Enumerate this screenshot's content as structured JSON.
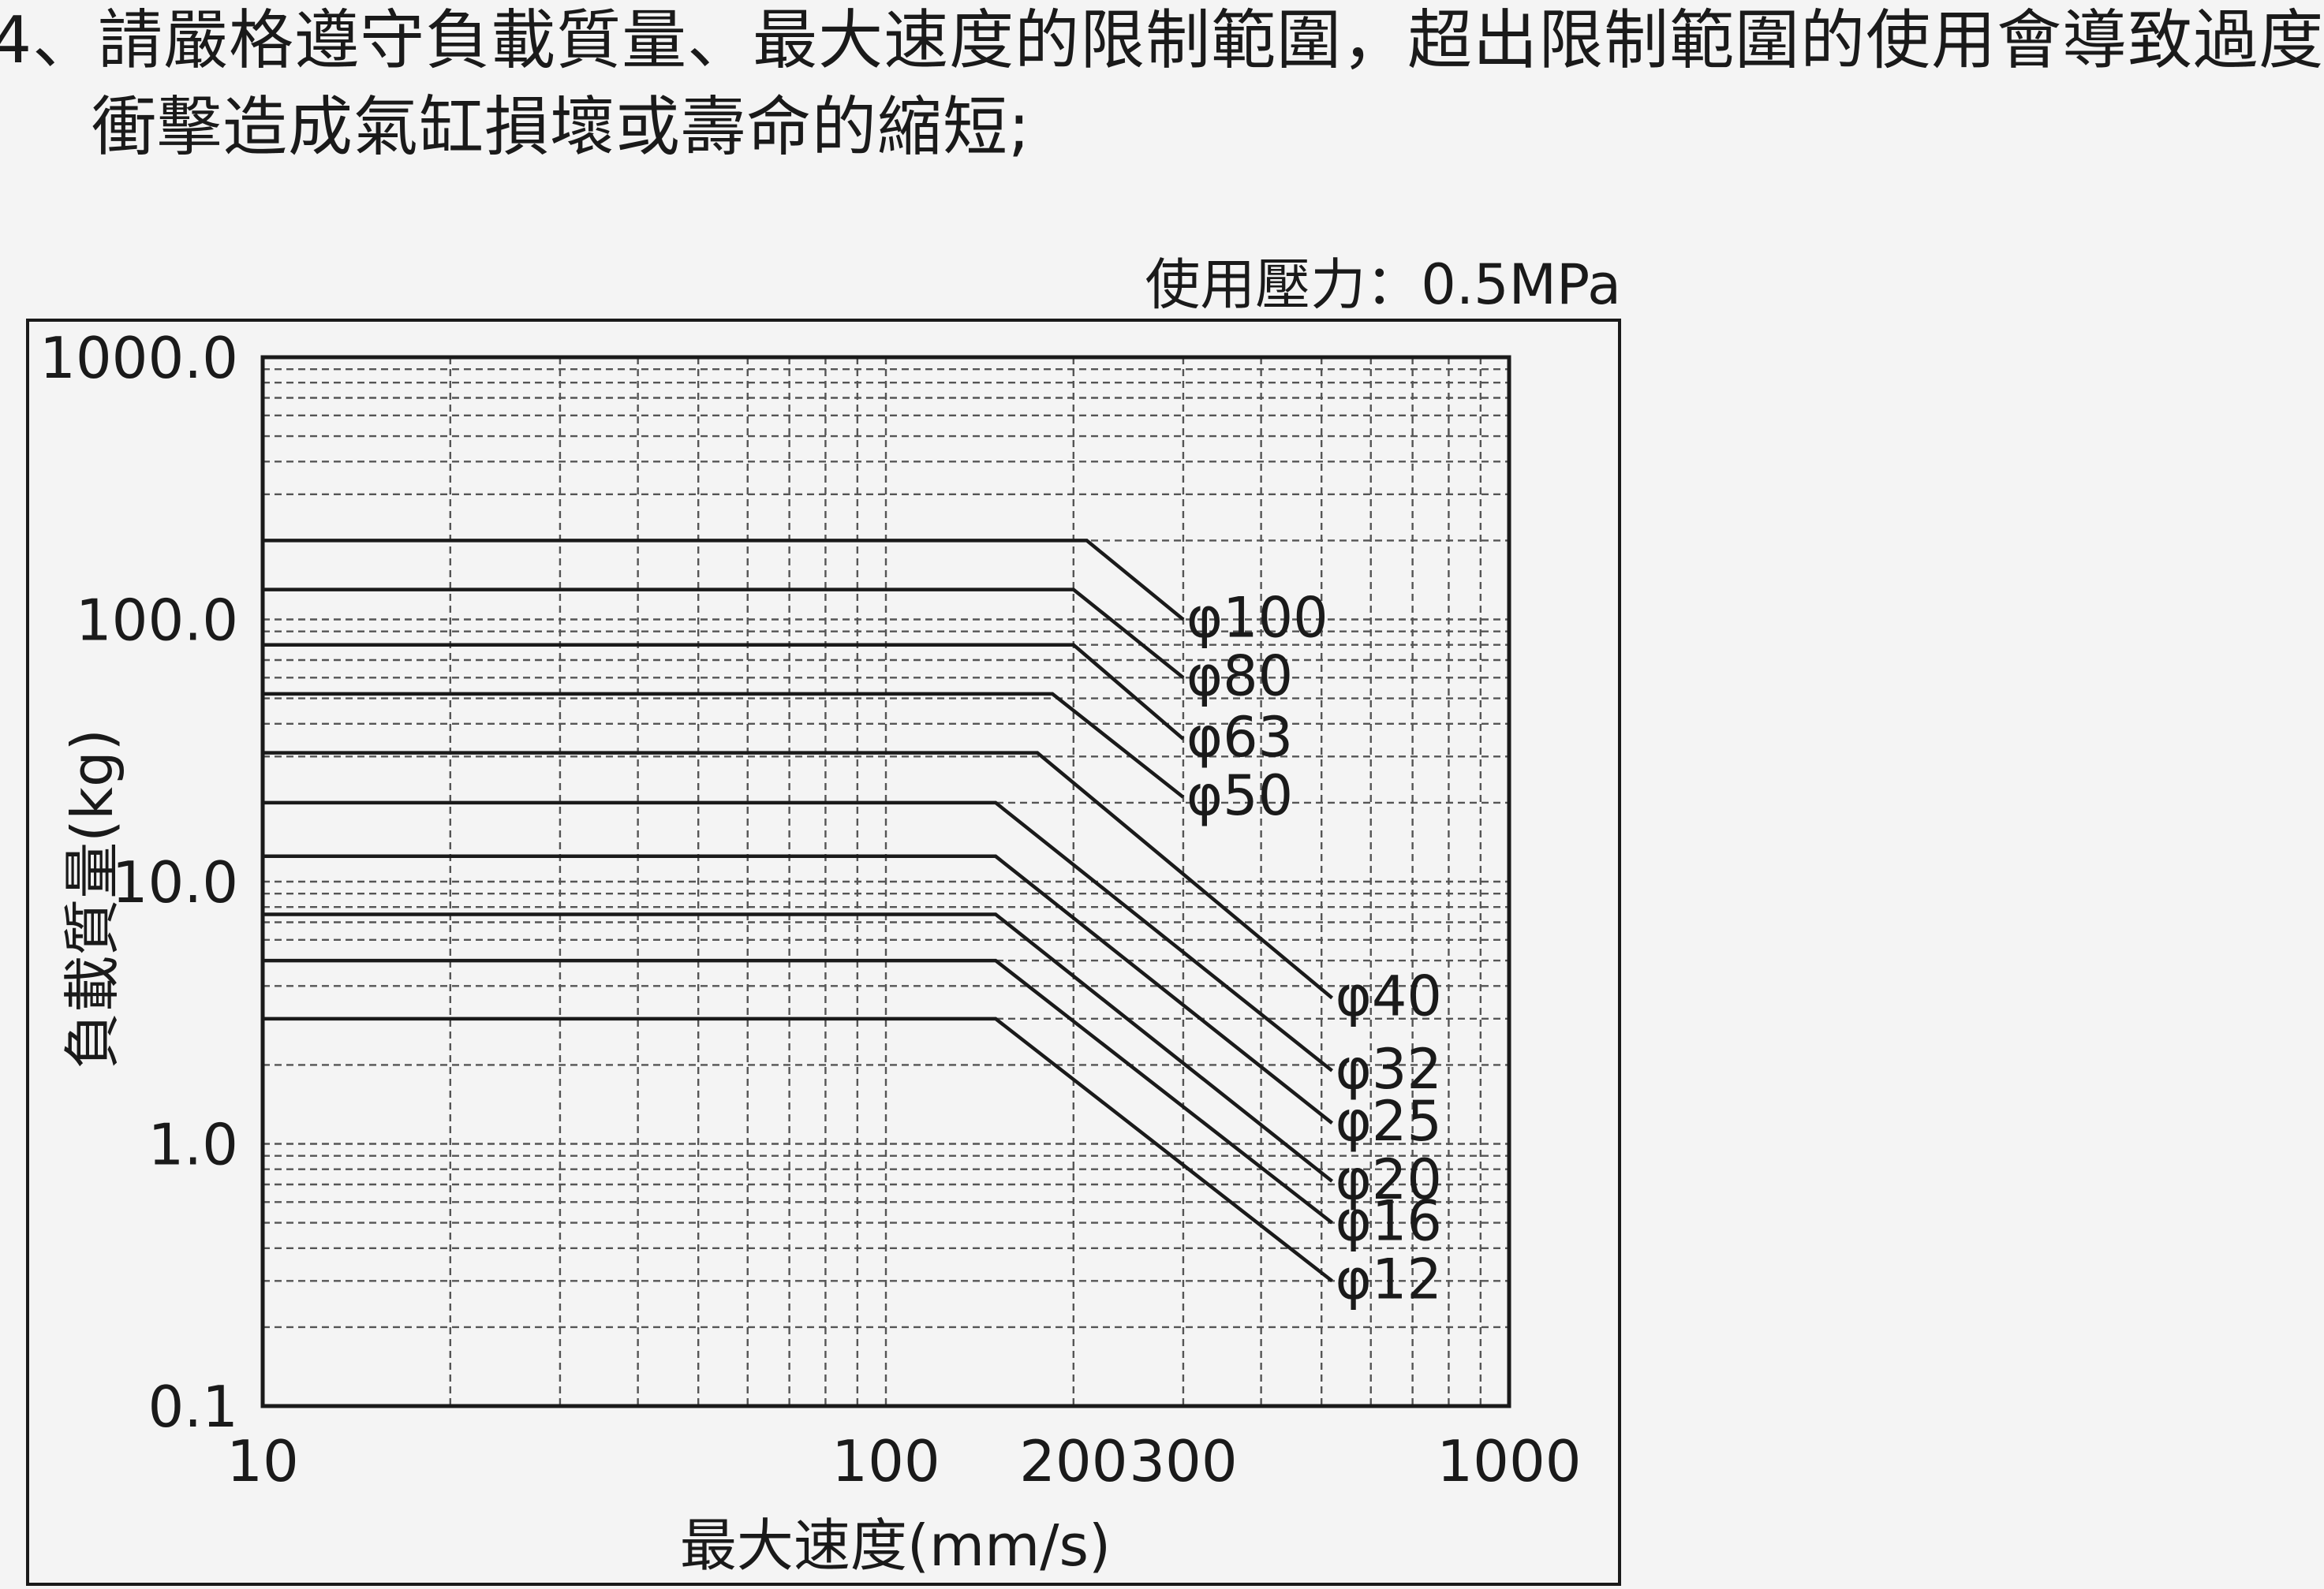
{
  "note": {
    "line1": "4、請嚴格遵守負載質量、最大速度的限制範圍，超出限制範圍的使用會導致過度",
    "line2": "衝擊造成氣缸損壞或壽命的縮短;"
  },
  "chart_data": {
    "type": "line",
    "pressure_label": "使用壓力：0.5MPa",
    "xlabel": "最大速度(mm/s)",
    "ylabel": "負載質量(kg)",
    "xscale": "log",
    "yscale": "log",
    "xlim": [
      10,
      1000
    ],
    "ylim": [
      0.1,
      1000
    ],
    "grid": true,
    "x_ticks": [
      {
        "value": 10,
        "label": "10"
      },
      {
        "value": 100,
        "label": "100"
      },
      {
        "value": 200,
        "label": "200"
      },
      {
        "value": 300,
        "label": "300"
      },
      {
        "value": 1000,
        "label": "1000"
      }
    ],
    "y_ticks": [
      {
        "value": 0.1,
        "label": "0.1"
      },
      {
        "value": 1,
        "label": "1.0"
      },
      {
        "value": 10,
        "label": "10.0"
      },
      {
        "value": 100,
        "label": "100.0"
      },
      {
        "value": 1000,
        "label": "1000.0"
      }
    ],
    "series": [
      {
        "name": "φ100",
        "x": [
          10,
          210,
          300
        ],
        "y": [
          200,
          200,
          100
        ]
      },
      {
        "name": "φ80",
        "x": [
          10,
          200,
          300
        ],
        "y": [
          130,
          130,
          60
        ]
      },
      {
        "name": "φ63",
        "x": [
          10,
          200,
          300
        ],
        "y": [
          80,
          80,
          35
        ]
      },
      {
        "name": "φ50",
        "x": [
          10,
          185,
          300
        ],
        "y": [
          52,
          52,
          21
        ]
      },
      {
        "name": "φ40",
        "x": [
          10,
          175,
          520
        ],
        "y": [
          31,
          31,
          3.6
        ]
      },
      {
        "name": "φ32",
        "x": [
          10,
          150,
          520
        ],
        "y": [
          20,
          20,
          1.9
        ]
      },
      {
        "name": "φ25",
        "x": [
          10,
          150,
          520
        ],
        "y": [
          12.5,
          12.5,
          1.2
        ]
      },
      {
        "name": "φ20",
        "x": [
          10,
          150,
          520
        ],
        "y": [
          7.5,
          7.5,
          0.72
        ]
      },
      {
        "name": "φ16",
        "x": [
          10,
          150,
          520
        ],
        "y": [
          5,
          5,
          0.5
        ]
      },
      {
        "name": "φ12",
        "x": [
          10,
          150,
          520
        ],
        "y": [
          3,
          3,
          0.3
        ]
      }
    ]
  }
}
